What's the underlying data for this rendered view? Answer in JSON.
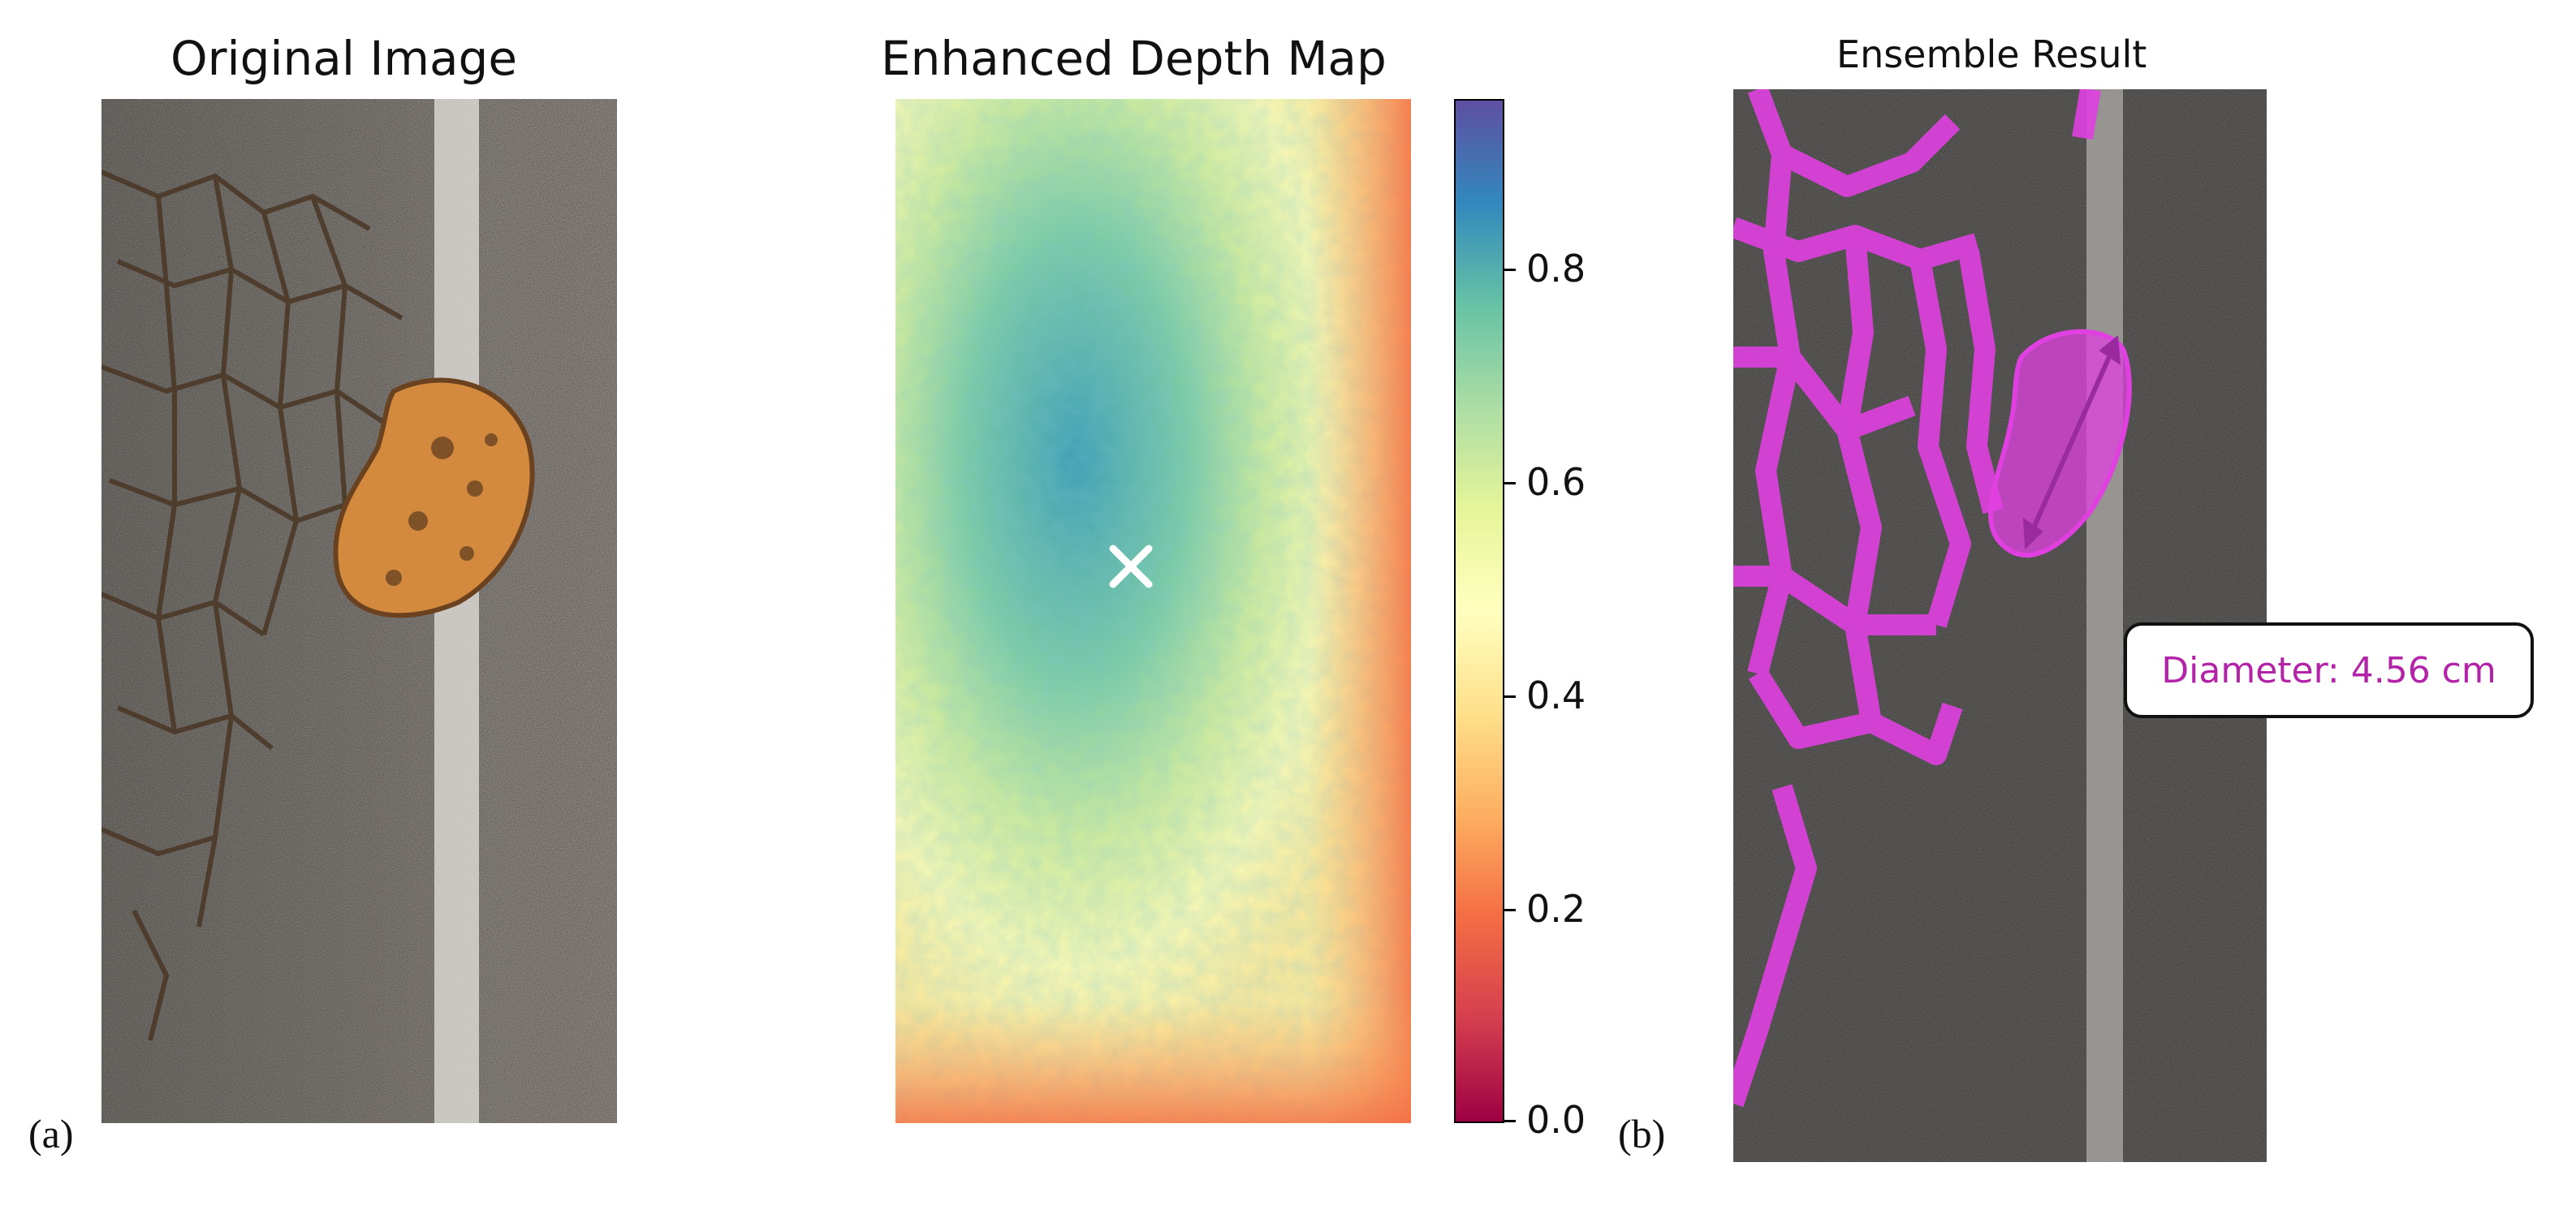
{
  "panels": [
    {
      "title": "Original Image",
      "caption": "(a)"
    },
    {
      "title": "Enhanced Depth Map"
    },
    {
      "title": "Ensemble Result",
      "caption": "(b)"
    }
  ],
  "colorbar": {
    "ticks": [
      "0.0",
      "0.2",
      "0.4",
      "0.6",
      "0.8"
    ],
    "tick_values": [
      0.0,
      0.2,
      0.4,
      0.6,
      0.8
    ],
    "range": [
      0.0,
      0.96
    ],
    "colormap": "Spectral"
  },
  "annotation": {
    "diameter_label": "Diameter: 4.56 cm",
    "color": "#b323a8"
  },
  "colors": {
    "mask": "#e040e0",
    "pothole": "#d8833a",
    "asphalt": "#8a8886"
  },
  "icons": {
    "depth_marker": "x-marker-icon",
    "diameter_arrow": "double-arrow-icon"
  }
}
